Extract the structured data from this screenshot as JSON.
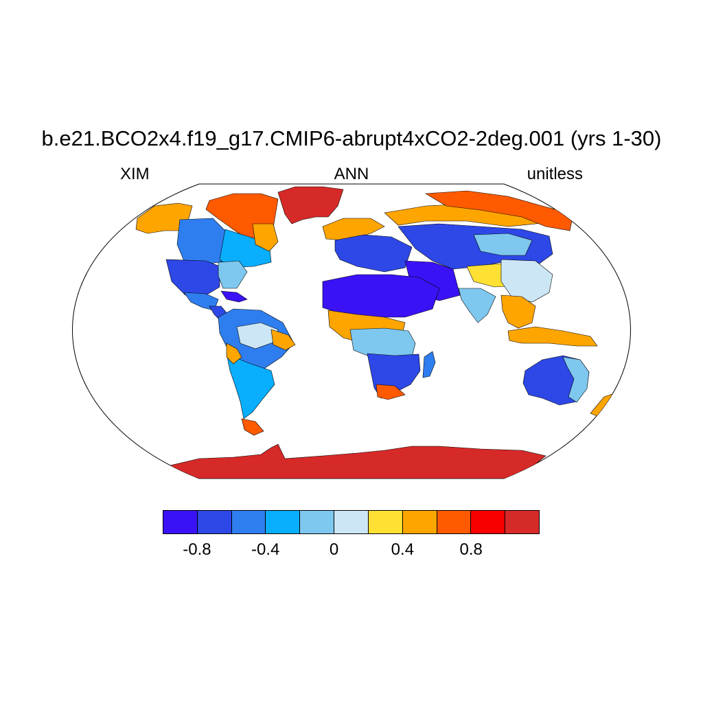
{
  "title": "b.e21.BCO2x4.f19_g17.CMIP6-abrupt4xCO2-2deg.001 (yrs 1-30)",
  "left_label": "XIM",
  "center_label": "ANN",
  "right_label": "unitless",
  "colorbar": {
    "colors": [
      "#3b12f5",
      "#2d48e6",
      "#2f7ef0",
      "#0aaeff",
      "#7ec7ef",
      "#cce6f5",
      "#ffe033",
      "#ffa500",
      "#ff5a00",
      "#f80000",
      "#d62a28"
    ],
    "labels": [
      {
        "text": "-0.8",
        "value": -0.8
      },
      {
        "text": "-0.4",
        "value": -0.4
      },
      {
        "text": "0",
        "value": 0
      },
      {
        "text": "0.4",
        "value": 0.4
      },
      {
        "text": "0.8",
        "value": 0.8
      }
    ],
    "boundaries": [
      -1.0,
      -0.8,
      -0.6,
      -0.4,
      -0.2,
      0,
      0.2,
      0.4,
      0.6,
      0.8,
      1.0
    ]
  },
  "map": {
    "projection": "robinson",
    "regions": [
      {
        "name": "Antarctica",
        "color": "#d62a28"
      },
      {
        "name": "Greenland",
        "color": "#d62a28"
      },
      {
        "name": "Canadian Arctic",
        "color": "#ff5a00"
      },
      {
        "name": "Alaska",
        "color": "#ffa500"
      },
      {
        "name": "Western Canada",
        "color": "#2f7ef0"
      },
      {
        "name": "Eastern Canada",
        "color": "#0aaeff"
      },
      {
        "name": "Quebec",
        "color": "#ffa500"
      },
      {
        "name": "United States",
        "color": "#2d48e6"
      },
      {
        "name": "Eastern US",
        "color": "#7ec7ef"
      },
      {
        "name": "Mexico",
        "color": "#2f7ef0"
      },
      {
        "name": "Central America",
        "color": "#2d48e6"
      },
      {
        "name": "Caribbean",
        "color": "#3b12f5"
      },
      {
        "name": "South America North",
        "color": "#2f7ef0"
      },
      {
        "name": "Amazon",
        "color": "#cce6f5"
      },
      {
        "name": "Brazil East",
        "color": "#ffa500"
      },
      {
        "name": "South America South",
        "color": "#0aaeff"
      },
      {
        "name": "Patagonia",
        "color": "#ffa500"
      },
      {
        "name": "Tierra del Fuego",
        "color": "#ff5a00"
      },
      {
        "name": "Northern Europe",
        "color": "#ffa500"
      },
      {
        "name": "Europe",
        "color": "#2d48e6"
      },
      {
        "name": "Siberia",
        "color": "#ffa500"
      },
      {
        "name": "Far East Russia",
        "color": "#ff5a00"
      },
      {
        "name": "Central Asia",
        "color": "#2d48e6"
      },
      {
        "name": "Mongolia",
        "color": "#7ec7ef"
      },
      {
        "name": "Tibet",
        "color": "#ffe033"
      },
      {
        "name": "China",
        "color": "#cce6f5"
      },
      {
        "name": "Middle East",
        "color": "#3b12f5"
      },
      {
        "name": "Sahara",
        "color": "#3b12f5"
      },
      {
        "name": "Sahel",
        "color": "#ffa500"
      },
      {
        "name": "Central Africa",
        "color": "#7ec7ef"
      },
      {
        "name": "Southern Africa",
        "color": "#2d48e6"
      },
      {
        "name": "South Africa",
        "color": "#ff5a00"
      },
      {
        "name": "Madagascar",
        "color": "#2f7ef0"
      },
      {
        "name": "India",
        "color": "#7ec7ef"
      },
      {
        "name": "Southeast Asia",
        "color": "#ffa500"
      },
      {
        "name": "Indonesia",
        "color": "#ffa500"
      },
      {
        "name": "Australia",
        "color": "#2d48e6"
      },
      {
        "name": "Australia East",
        "color": "#7ec7ef"
      },
      {
        "name": "New Zealand",
        "color": "#ffa500"
      }
    ]
  }
}
